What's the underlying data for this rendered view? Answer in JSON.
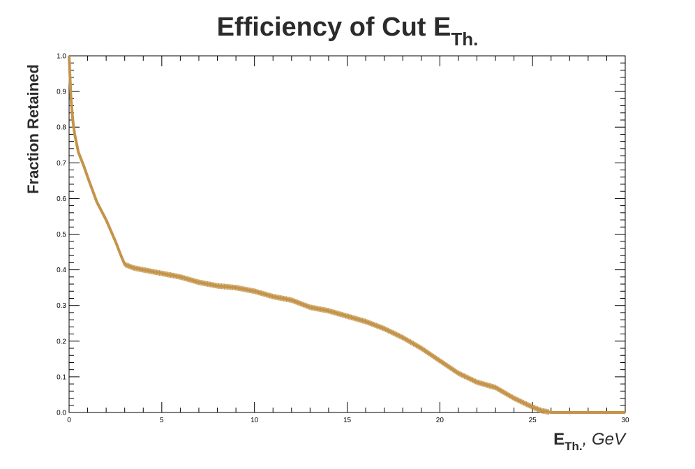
{
  "chart_data": {
    "type": "line",
    "title": "Efficiency of Cut E",
    "title_sub": "Th.",
    "ylabel": "Fraction Retained",
    "xlabel_main": "E",
    "xlabel_sub": "Th.",
    "xlabel_unit": ", GeV",
    "xlim": [
      0,
      30
    ],
    "ylim": [
      0,
      1
    ],
    "x_ticks": [
      "0",
      "5",
      "10",
      "15",
      "20",
      "25",
      "30"
    ],
    "y_ticks": [
      "0.0",
      "0.1",
      "0.2",
      "0.3",
      "0.4",
      "0.5",
      "0.6",
      "0.7",
      "0.8",
      "0.9",
      "1.0"
    ],
    "grid": false,
    "series_color": "#c4944a",
    "series": [
      {
        "x": [
          0,
          0.1,
          0.2,
          0.3,
          0.5,
          0.8,
          1.0,
          1.5,
          2.0,
          2.5,
          2.8,
          3.0,
          3.5,
          4.0,
          5.0,
          6.0,
          7.0,
          8.0,
          9.0,
          10.0,
          11.0,
          12.0,
          13.0,
          14.0,
          15.0,
          16.0,
          17.0,
          18.0,
          19.0,
          20.0,
          21.0,
          22.0,
          23.0,
          24.0,
          25.0,
          25.5,
          26.0,
          30.0
        ],
        "y": [
          1.0,
          0.88,
          0.82,
          0.78,
          0.73,
          0.69,
          0.66,
          0.59,
          0.54,
          0.48,
          0.44,
          0.415,
          0.405,
          0.4,
          0.39,
          0.38,
          0.365,
          0.355,
          0.35,
          0.34,
          0.325,
          0.315,
          0.295,
          0.285,
          0.27,
          0.255,
          0.235,
          0.21,
          0.18,
          0.145,
          0.11,
          0.085,
          0.07,
          0.04,
          0.015,
          0.005,
          0.0,
          0.0
        ]
      }
    ]
  }
}
